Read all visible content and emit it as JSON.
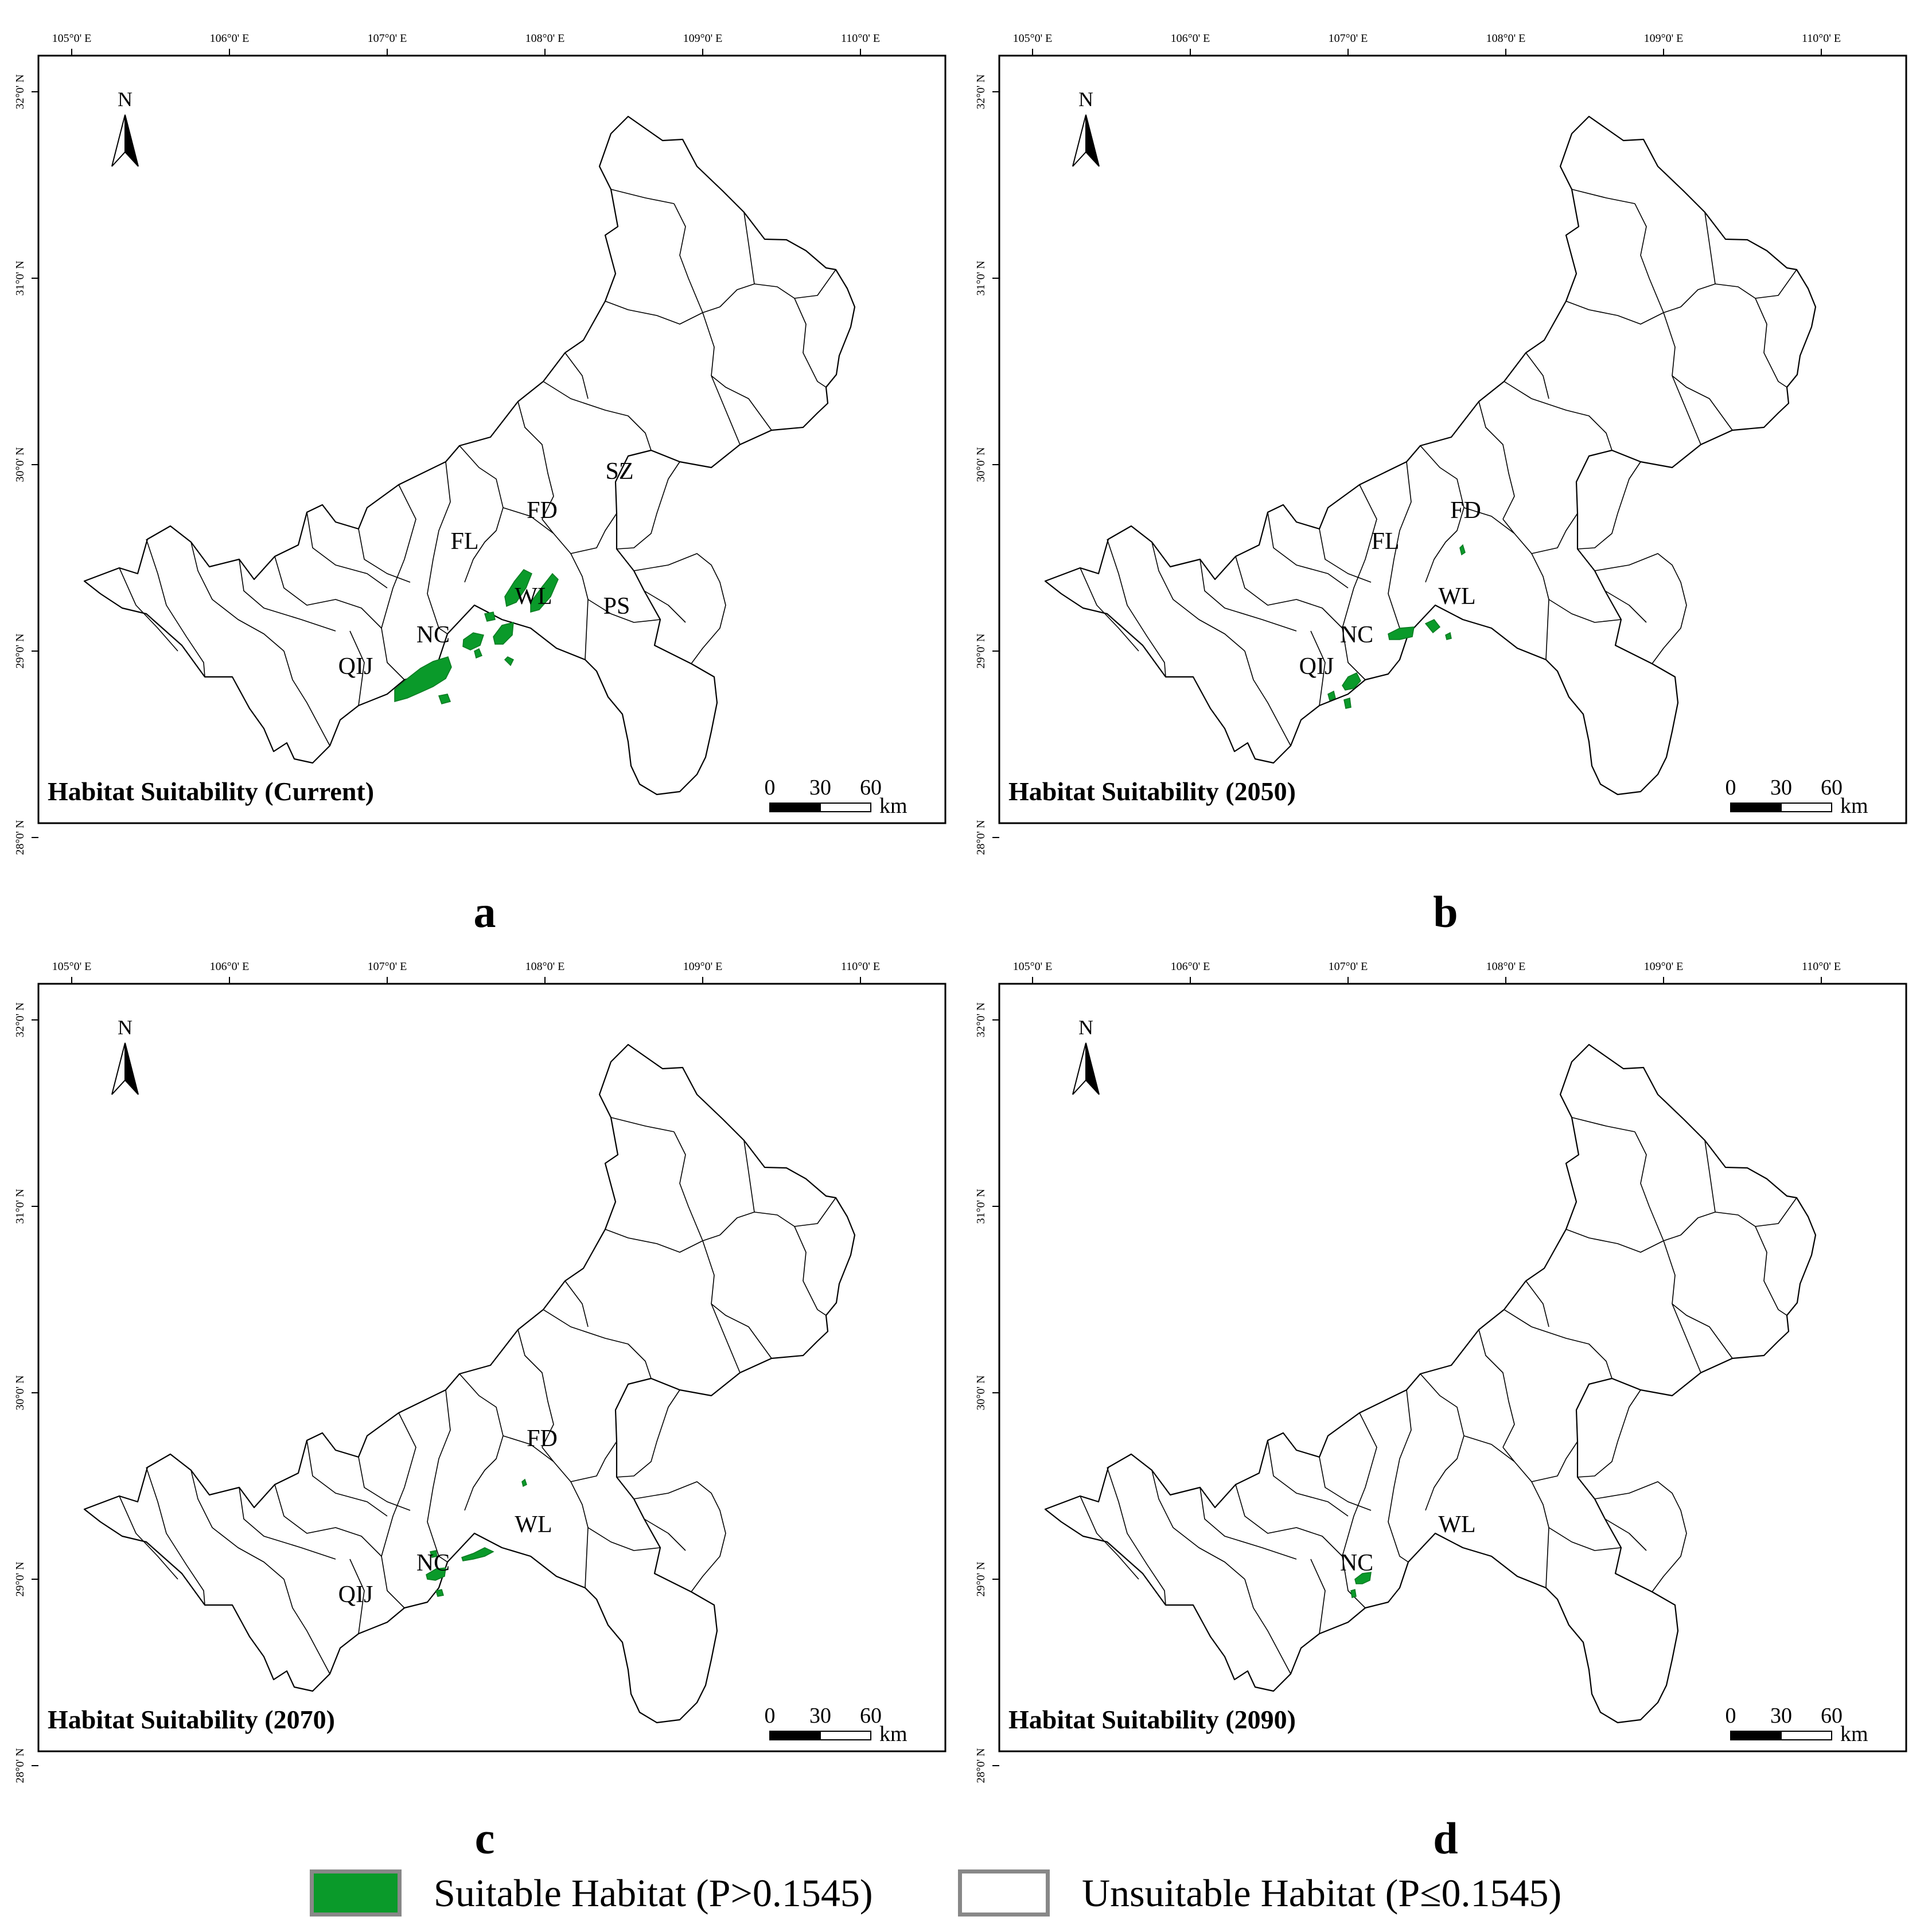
{
  "panels": [
    {
      "id": "a",
      "title": "Habitat Suitability (Current)",
      "letter": "a",
      "region_labels": [
        "SZ",
        "FD",
        "FL",
        "WL",
        "PS",
        "NC",
        "QIJ"
      ]
    },
    {
      "id": "b",
      "title": "Habitat Suitability (2050)",
      "letter": "b",
      "region_labels": [
        "FD",
        "FL",
        "WL",
        "NC",
        "QIJ"
      ]
    },
    {
      "id": "c",
      "title": "Habitat Suitability (2070)",
      "letter": "c",
      "region_labels": [
        "FD",
        "WL",
        "NC",
        "QIJ"
      ]
    },
    {
      "id": "d",
      "title": "Habitat Suitability (2090)",
      "letter": "d",
      "region_labels": [
        "WL",
        "NC"
      ]
    }
  ],
  "longitude_ticks": [
    "105°0' E",
    "106°0' E",
    "107°0' E",
    "108°0' E",
    "109°0' E",
    "110°0' E"
  ],
  "latitude_ticks": [
    "32°0' N",
    "31°0' N",
    "30°0' N",
    "29°0' N",
    "28°0' N"
  ],
  "north_arrow": {
    "label": "N",
    "icon": "north-arrow-icon"
  },
  "scale_bar": {
    "ticks": [
      "0",
      "30",
      "60"
    ],
    "unit": "km"
  },
  "suitable_color": "#0a9a2a",
  "legend": {
    "suitable": {
      "label": "Suitable Habitat (P>0.1545)",
      "color": "#0a9a2a"
    },
    "unsuitable": {
      "label": "Unsuitable Habitat (P≤0.1545)",
      "color": "#ffffff"
    }
  }
}
